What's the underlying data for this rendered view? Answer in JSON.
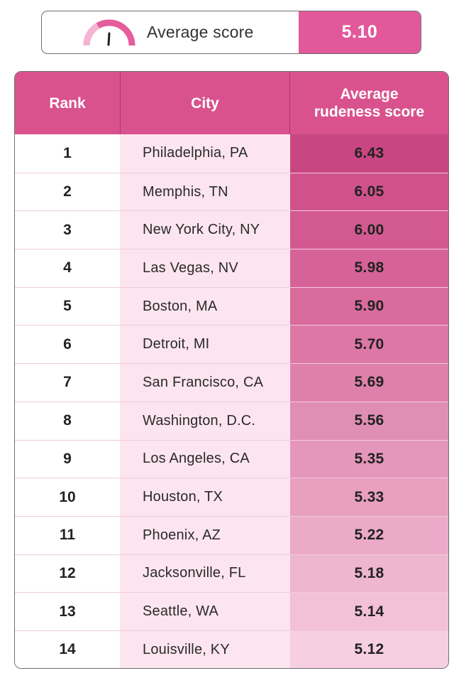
{
  "summary": {
    "label": "Average score",
    "value": "5.10"
  },
  "colors": {
    "accent": "#e2589a",
    "header": "#d9528e",
    "city_column": "#fde5ef"
  },
  "table": {
    "headers": {
      "rank": "Rank",
      "city": "City",
      "score_line1": "Average",
      "score_line2": "rudeness score"
    },
    "rows": [
      {
        "rank": "1",
        "city": "Philadelphia, PA",
        "score": "6.43",
        "shade": "#c84782"
      },
      {
        "rank": "2",
        "city": "Memphis, TN",
        "score": "6.05",
        "shade": "#d0528b"
      },
      {
        "rank": "3",
        "city": "New York City, NY",
        "score": "6.00",
        "shade": "#d25a90"
      },
      {
        "rank": "4",
        "city": "Las Vegas, NV",
        "score": "5.98",
        "shade": "#d66397"
      },
      {
        "rank": "5",
        "city": "Boston, MA",
        "score": "5.90",
        "shade": "#d96b9d"
      },
      {
        "rank": "6",
        "city": "Detroit, MI",
        "score": "5.70",
        "shade": "#dd78a6"
      },
      {
        "rank": "7",
        "city": "San Francisco, CA",
        "score": "5.69",
        "shade": "#df80ab"
      },
      {
        "rank": "8",
        "city": "Washington, D.C.",
        "score": "5.56",
        "shade": "#e08fb4"
      },
      {
        "rank": "9",
        "city": "Los Angeles, CA",
        "score": "5.35",
        "shade": "#e596bb"
      },
      {
        "rank": "10",
        "city": "Houston, TX",
        "score": "5.33",
        "shade": "#e89fc0"
      },
      {
        "rank": "11",
        "city": "Phoenix, AZ",
        "score": "5.22",
        "shade": "#ebaac8"
      },
      {
        "rank": "12",
        "city": "Jacksonville, FL",
        "score": "5.18",
        "shade": "#efb6cf"
      },
      {
        "rank": "13",
        "city": "Seattle, WA",
        "score": "5.14",
        "shade": "#f2c0d7"
      },
      {
        "rank": "14",
        "city": "Louisville, KY",
        "score": "5.12",
        "shade": "#f6cfe0"
      }
    ]
  }
}
